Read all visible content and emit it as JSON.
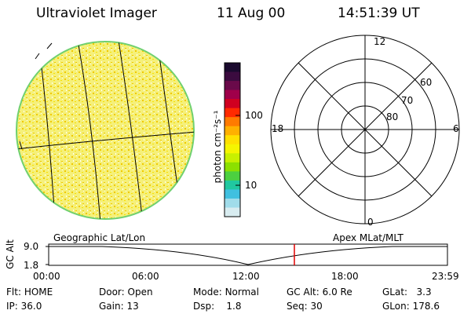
{
  "header": {
    "instrument": "Ultraviolet Imager",
    "date": "11 Aug 00",
    "time": "14:51:39 UT"
  },
  "colorbar": {
    "label": "photon cm⁻²s⁻¹",
    "ticks": [
      "100",
      "10"
    ],
    "colors": [
      "#1a0a2e",
      "#3b0b3f",
      "#6a0a4a",
      "#a0004a",
      "#d00020",
      "#ff2a00",
      "#ff7a00",
      "#ffb000",
      "#ffe000",
      "#f5f500",
      "#c8f000",
      "#8ce000",
      "#4cd040",
      "#20c8a0",
      "#40c0e0",
      "#a0dcea",
      "#d8ecf0"
    ]
  },
  "left_panel": {
    "caption": "Geographic Lat/Lon",
    "disk_color": "#f5f07a",
    "speckle_color": "#f0c800"
  },
  "right_panel": {
    "caption": "Apex MLat/MLT",
    "mlt_labels": {
      "top": "12",
      "left": "18",
      "right": "6",
      "bottom": "0"
    },
    "lat_labels": [
      "60",
      "70",
      "80"
    ]
  },
  "altitude_plot": {
    "ylabel": "GC Alt",
    "yticks": [
      "9.0",
      "1.8"
    ],
    "xticks": [
      "00:00",
      "06:00",
      "12:00",
      "18:00",
      "23:59"
    ],
    "marker_color": "#e00000"
  },
  "footer": {
    "row1": [
      {
        "label": "Flt:",
        "value": "HOME"
      },
      {
        "label": "Door:",
        "value": "Open"
      },
      {
        "label": "Mode:",
        "value": "Normal"
      },
      {
        "label": "GC Alt:",
        "value": "6.0 Re"
      },
      {
        "label": "GLat:",
        "value": "3.3"
      }
    ],
    "row2": [
      {
        "label": "IP:",
        "value": "36.0"
      },
      {
        "label": "Gain:",
        "value": "13"
      },
      {
        "label": "Dsp:",
        "value": "1.8"
      },
      {
        "label": "Seq:",
        "value": "30"
      },
      {
        "label": "GLon:",
        "value": "178.6"
      }
    ]
  }
}
